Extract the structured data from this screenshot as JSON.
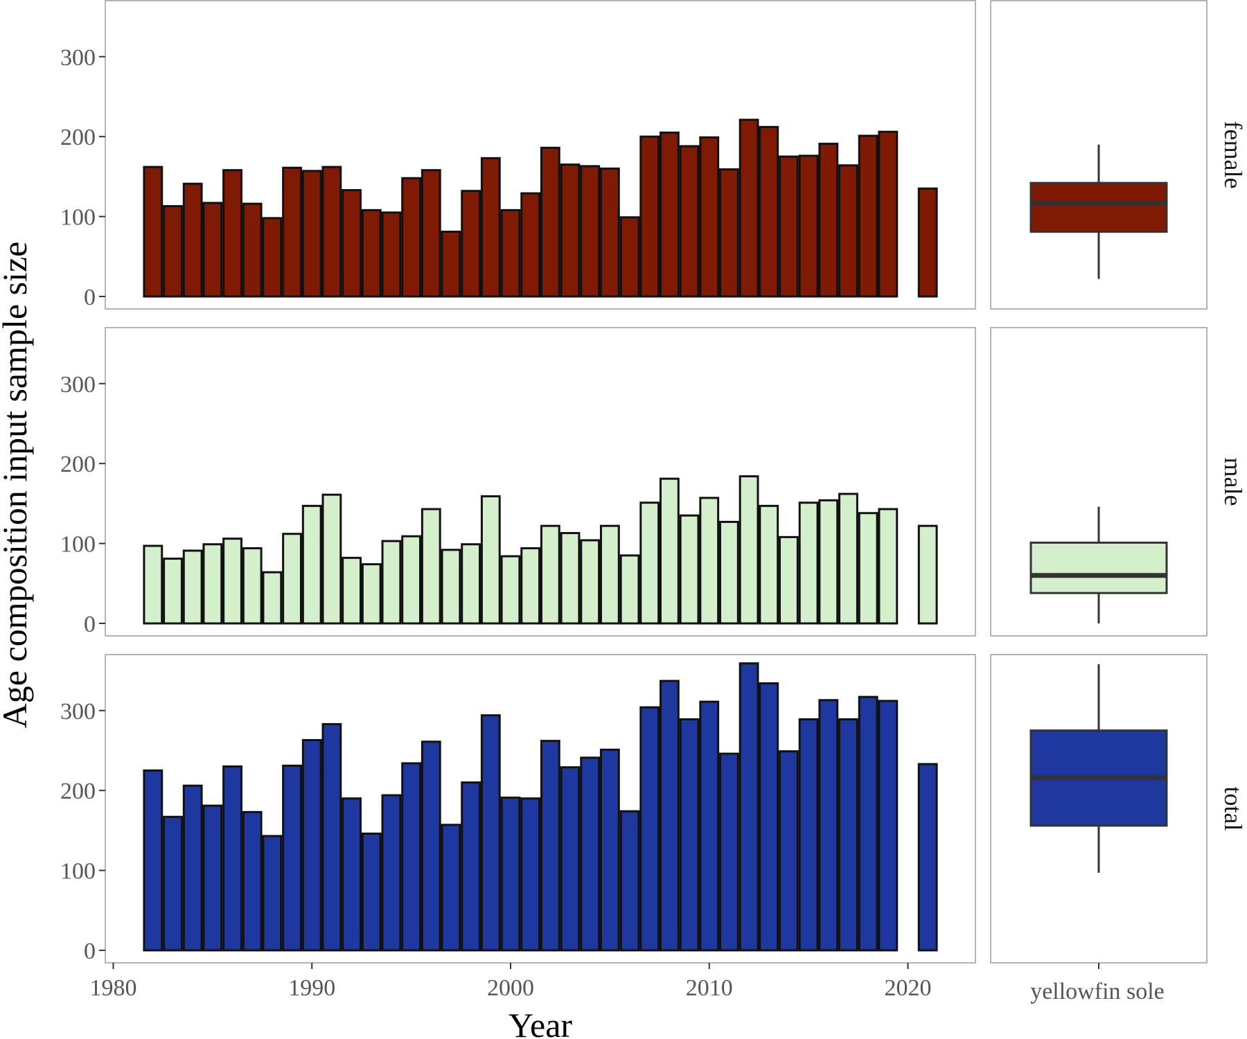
{
  "chart_data": {
    "type": "bar",
    "xlabel": "Year",
    "ylabel": "Age composition input sample size",
    "x_ticks": [
      1980,
      1990,
      2000,
      2010,
      2020
    ],
    "y_ticks": [
      0,
      100,
      200,
      300
    ],
    "ylim": [
      0,
      370
    ],
    "xlim": [
      1979.6,
      2023.4
    ],
    "grid": false,
    "boxplot_category": "yellowfin sole",
    "panels": [
      {
        "name": "female",
        "fill": "#7f1a05",
        "years": [
          1982,
          1983,
          1984,
          1985,
          1986,
          1987,
          1988,
          1989,
          1990,
          1991,
          1992,
          1993,
          1994,
          1995,
          1996,
          1997,
          1998,
          1999,
          2000,
          2001,
          2002,
          2003,
          2004,
          2005,
          2006,
          2007,
          2008,
          2009,
          2010,
          2011,
          2012,
          2013,
          2014,
          2015,
          2016,
          2017,
          2018,
          2019,
          2021
        ],
        "values": [
          162,
          113,
          141,
          117,
          158,
          116,
          98,
          161,
          157,
          162,
          133,
          108,
          105,
          148,
          158,
          81,
          132,
          173,
          108,
          129,
          186,
          165,
          163,
          160,
          99,
          200,
          205,
          188,
          199,
          159,
          221,
          212,
          175,
          176,
          191,
          164,
          201,
          206,
          135
        ],
        "boxplot": {
          "min": 22,
          "q1": 81,
          "median": 117,
          "q3": 142,
          "max": 190
        }
      },
      {
        "name": "male",
        "fill": "#d4efcc",
        "years": [
          1982,
          1983,
          1984,
          1985,
          1986,
          1987,
          1988,
          1989,
          1990,
          1991,
          1992,
          1993,
          1994,
          1995,
          1996,
          1997,
          1998,
          1999,
          2000,
          2001,
          2002,
          2003,
          2004,
          2005,
          2006,
          2007,
          2008,
          2009,
          2010,
          2011,
          2012,
          2013,
          2014,
          2015,
          2016,
          2017,
          2018,
          2019,
          2021
        ],
        "values": [
          97,
          81,
          91,
          99,
          106,
          94,
          64,
          112,
          147,
          161,
          82,
          74,
          103,
          109,
          143,
          92,
          99,
          159,
          84,
          94,
          122,
          113,
          104,
          122,
          85,
          151,
          181,
          135,
          157,
          127,
          184,
          147,
          108,
          151,
          154,
          162,
          138,
          143,
          122
        ],
        "boxplot": {
          "min": 0,
          "q1": 38,
          "median": 60,
          "q3": 101,
          "max": 146
        }
      },
      {
        "name": "total",
        "fill": "#1f389f",
        "years": [
          1982,
          1983,
          1984,
          1985,
          1986,
          1987,
          1988,
          1989,
          1990,
          1991,
          1992,
          1993,
          1994,
          1995,
          1996,
          1997,
          1998,
          1999,
          2000,
          2001,
          2002,
          2003,
          2004,
          2005,
          2006,
          2007,
          2008,
          2009,
          2010,
          2011,
          2012,
          2013,
          2014,
          2015,
          2016,
          2017,
          2018,
          2019,
          2021
        ],
        "values": [
          225,
          167,
          206,
          181,
          230,
          173,
          143,
          231,
          263,
          283,
          190,
          146,
          194,
          234,
          261,
          157,
          210,
          294,
          191,
          190,
          262,
          229,
          241,
          251,
          174,
          304,
          337,
          289,
          311,
          246,
          359,
          334,
          249,
          289,
          313,
          289,
          317,
          312,
          233
        ],
        "boxplot": {
          "min": 97,
          "q1": 156,
          "median": 216,
          "q3": 275,
          "max": 358
        }
      }
    ]
  },
  "colors": {
    "panel_border": "#b3b3b3",
    "bar_outline": "#111111",
    "box_line": "#333333"
  }
}
